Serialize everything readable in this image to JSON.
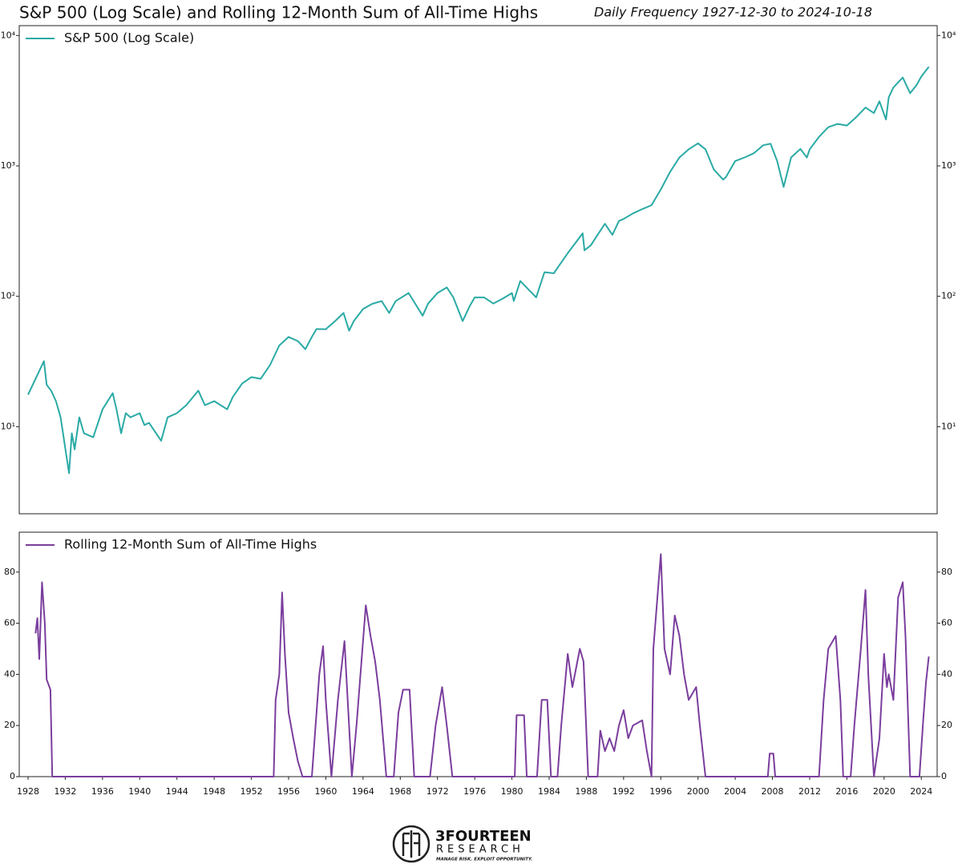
{
  "chart_data": [
    {
      "type": "line",
      "title": "S&P 500 (Log Scale) and Rolling 12-Month Sum of All-Time Highs",
      "subtitle": "Daily Frequency 1927-12-30 to 2024-10-18",
      "log_scale": true,
      "legend": "upper left",
      "xlim": [
        1927.05,
        2025.7
      ],
      "ylim": [
        2.15,
        11900
      ],
      "yticks": [
        {
          "value": 10,
          "label": "10¹"
        },
        {
          "value": 100,
          "label": "10²"
        },
        {
          "value": 1000,
          "label": "10³"
        },
        {
          "value": 10000,
          "label": "10⁴"
        }
      ],
      "x": [
        1928,
        1929.7,
        1930,
        1930.5,
        1931,
        1931.5,
        1932.4,
        1932.7,
        1933,
        1933.5,
        1934,
        1935,
        1936,
        1937.1,
        1937.5,
        1938,
        1938.5,
        1939,
        1940,
        1940.5,
        1941,
        1942.3,
        1943,
        1944,
        1945,
        1946.3,
        1947,
        1948,
        1949.4,
        1950,
        1951,
        1952,
        1953,
        1954,
        1955,
        1956,
        1957,
        1957.8,
        1958.5,
        1959,
        1960,
        1961,
        1961.9,
        1962.5,
        1963,
        1964,
        1965,
        1966,
        1966.8,
        1967.5,
        1968.9,
        1970.4,
        1971,
        1972,
        1973,
        1973.7,
        1974.7,
        1975.5,
        1976,
        1977,
        1978,
        1979,
        1980,
        1980.2,
        1980.9,
        1982.6,
        1983.5,
        1984.5,
        1985,
        1986,
        1987.6,
        1987.8,
        1988.5,
        1989,
        1990,
        1990.8,
        1991.5,
        1992,
        1993,
        1994,
        1995,
        1996,
        1997,
        1998,
        1999,
        2000,
        2000.8,
        2001.7,
        2002.7,
        2003,
        2004,
        2005,
        2006,
        2007,
        2007.8,
        2008.5,
        2009.2,
        2010,
        2011,
        2011.7,
        2012,
        2013,
        2014,
        2015,
        2016,
        2017,
        2018,
        2018.9,
        2019.5,
        2020.2,
        2020.5,
        2021,
        2022,
        2022.8,
        2023.5,
        2024,
        2024.8
      ],
      "series": [
        {
          "name": "S&P 500 (Log Scale)",
          "color": "#2aaaa5",
          "values": [
            17.6,
            31.8,
            21,
            18.8,
            15.7,
            11.8,
            4.4,
            8.9,
            6.7,
            11.8,
            8.9,
            8.3,
            13.6,
            18.1,
            13.6,
            8.9,
            12.7,
            11.8,
            12.7,
            10.3,
            10.7,
            7.8,
            11.8,
            12.7,
            14.6,
            18.9,
            14.6,
            15.7,
            13.6,
            16.9,
            21.4,
            24,
            23.3,
            29.7,
            42,
            48.8,
            45.3,
            39.3,
            48.8,
            56.1,
            56,
            64.6,
            74.5,
            54.5,
            64.6,
            79.9,
            87.7,
            91.8,
            74.5,
            91.8,
            106,
            71,
            88,
            106,
            117,
            98,
            64.6,
            85,
            98,
            98,
            88,
            96,
            106,
            92,
            131,
            98,
            153,
            150,
            169,
            214,
            304,
            225,
            247,
            281,
            360,
            296,
            378,
            392,
            432,
            466,
            500,
            660,
            900,
            1160,
            1340,
            1490,
            1340,
            940,
            785,
            820,
            1090,
            1160,
            1250,
            1440,
            1480,
            1090,
            690,
            1160,
            1350,
            1160,
            1340,
            1670,
            1980,
            2100,
            2040,
            2360,
            2800,
            2540,
            3130,
            2270,
            3360,
            3990,
            4760,
            3610,
            4180,
            4850,
            5750
          ]
        }
      ]
    },
    {
      "type": "line",
      "legend": "upper left",
      "xlim": [
        1927.05,
        2025.7
      ],
      "ylim": [
        0,
        95.6
      ],
      "xticks": [
        1928,
        1932,
        1936,
        1940,
        1944,
        1948,
        1952,
        1956,
        1960,
        1964,
        1968,
        1972,
        1976,
        1980,
        1984,
        1988,
        1992,
        1996,
        2000,
        2004,
        2008,
        2012,
        2016,
        2020,
        2024
      ],
      "yticks": [
        0,
        20,
        40,
        60,
        80
      ],
      "x": [
        1928.8,
        1929,
        1929.2,
        1929.5,
        1929.8,
        1930,
        1930.4,
        1930.6,
        1954.4,
        1954.6,
        1955,
        1955.3,
        1955.6,
        1956,
        1956.5,
        1957,
        1957.5,
        1958.5,
        1958.8,
        1959.3,
        1959.7,
        1960,
        1960.6,
        1961.3,
        1962,
        1962.8,
        1963.3,
        1964.3,
        1964.8,
        1965.3,
        1965.8,
        1966.5,
        1967.3,
        1967.8,
        1968.3,
        1969,
        1969.5,
        1971.2,
        1971.8,
        1972.5,
        1973,
        1973.6,
        1980.3,
        1980.5,
        1981.3,
        1981.6,
        1982.7,
        1983.2,
        1983.8,
        1984.2,
        1984.9,
        1985.3,
        1986,
        1986.5,
        1987.3,
        1987.7,
        1988.2,
        1989.2,
        1989.5,
        1990,
        1990.5,
        1991,
        1991.5,
        1992,
        1992.5,
        1993,
        1994,
        1994.5,
        1995,
        1995.2,
        1996,
        1996.4,
        1997,
        1997.5,
        1998,
        1998.5,
        1999,
        1999.8,
        2000.2,
        2000.8,
        2007.5,
        2007.7,
        2008.1,
        2008.3,
        2013,
        2013.5,
        2014,
        2014.8,
        2015.3,
        2015.6,
        2016.4,
        2016.8,
        2017.5,
        2018,
        2018.3,
        2018.9,
        2019.5,
        2020,
        2020.3,
        2020.5,
        2021,
        2021.5,
        2022,
        2022.3,
        2022.8,
        2023.8,
        2024.2,
        2024.5,
        2024.8
      ],
      "series": [
        {
          "name": "Rolling 12-Month Sum of All-Time Highs",
          "color": "#7a3e9d",
          "values": [
            56,
            62,
            46,
            76,
            60,
            38,
            34,
            0,
            0,
            30,
            40,
            72,
            48,
            25,
            15,
            6,
            0,
            0,
            15,
            40,
            51,
            30,
            0,
            30,
            53,
            0,
            20,
            67,
            55,
            45,
            30,
            0,
            0,
            25,
            34,
            34,
            0,
            0,
            20,
            35,
            20,
            0,
            0,
            24,
            24,
            0,
            0,
            30,
            30,
            0,
            0,
            20,
            48,
            35,
            50,
            45,
            0,
            0,
            18,
            10,
            15,
            10,
            20,
            26,
            15,
            20,
            22,
            10,
            0,
            50,
            87,
            50,
            40,
            63,
            55,
            40,
            30,
            35,
            20,
            0,
            0,
            9,
            9,
            0,
            0,
            30,
            50,
            55,
            30,
            0,
            0,
            20,
            50,
            73,
            40,
            0,
            15,
            48,
            35,
            40,
            30,
            70,
            76,
            55,
            0,
            0,
            22,
            37,
            47
          ]
        }
      ]
    }
  ],
  "logo": {
    "name": "3FOURTEEN",
    "sub": "RESEARCH",
    "tagline": "MANAGE RISK. EXPLOIT OPPORTUNITY."
  }
}
